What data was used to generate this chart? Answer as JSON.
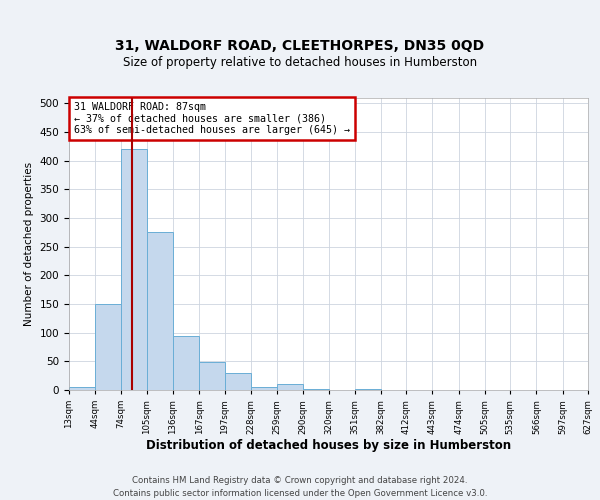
{
  "title": "31, WALDORF ROAD, CLEETHORPES, DN35 0QD",
  "subtitle": "Size of property relative to detached houses in Humberston",
  "xlabel": "Distribution of detached houses by size in Humberston",
  "ylabel": "Number of detached properties",
  "bar_color": "#c5d8ed",
  "bar_edge_color": "#6aaed6",
  "annotation_box_color": "#cc0000",
  "annotation_line_color": "#aa0000",
  "annotation_text": "31 WALDORF ROAD: 87sqm\n← 37% of detached houses are smaller (386)\n63% of semi-detached houses are larger (645) →",
  "property_line_x": 87,
  "bin_edges": [
    13,
    44,
    74,
    105,
    136,
    167,
    197,
    228,
    259,
    290,
    320,
    351,
    382,
    412,
    443,
    474,
    505,
    535,
    566,
    597,
    627
  ],
  "bar_heights": [
    5,
    150,
    420,
    275,
    95,
    48,
    30,
    5,
    10,
    2,
    0,
    2,
    0,
    0,
    0,
    0,
    0,
    0,
    0,
    0
  ],
  "ylim": [
    0,
    510
  ],
  "yticks": [
    0,
    50,
    100,
    150,
    200,
    250,
    300,
    350,
    400,
    450,
    500
  ],
  "tick_labels": [
    "13sqm",
    "44sqm",
    "74sqm",
    "105sqm",
    "136sqm",
    "167sqm",
    "197sqm",
    "228sqm",
    "259sqm",
    "290sqm",
    "320sqm",
    "351sqm",
    "382sqm",
    "412sqm",
    "443sqm",
    "474sqm",
    "505sqm",
    "535sqm",
    "566sqm",
    "597sqm",
    "627sqm"
  ],
  "footer": "Contains HM Land Registry data © Crown copyright and database right 2024.\nContains public sector information licensed under the Open Government Licence v3.0.",
  "background_color": "#eef2f7",
  "plot_bg_color": "#ffffff"
}
